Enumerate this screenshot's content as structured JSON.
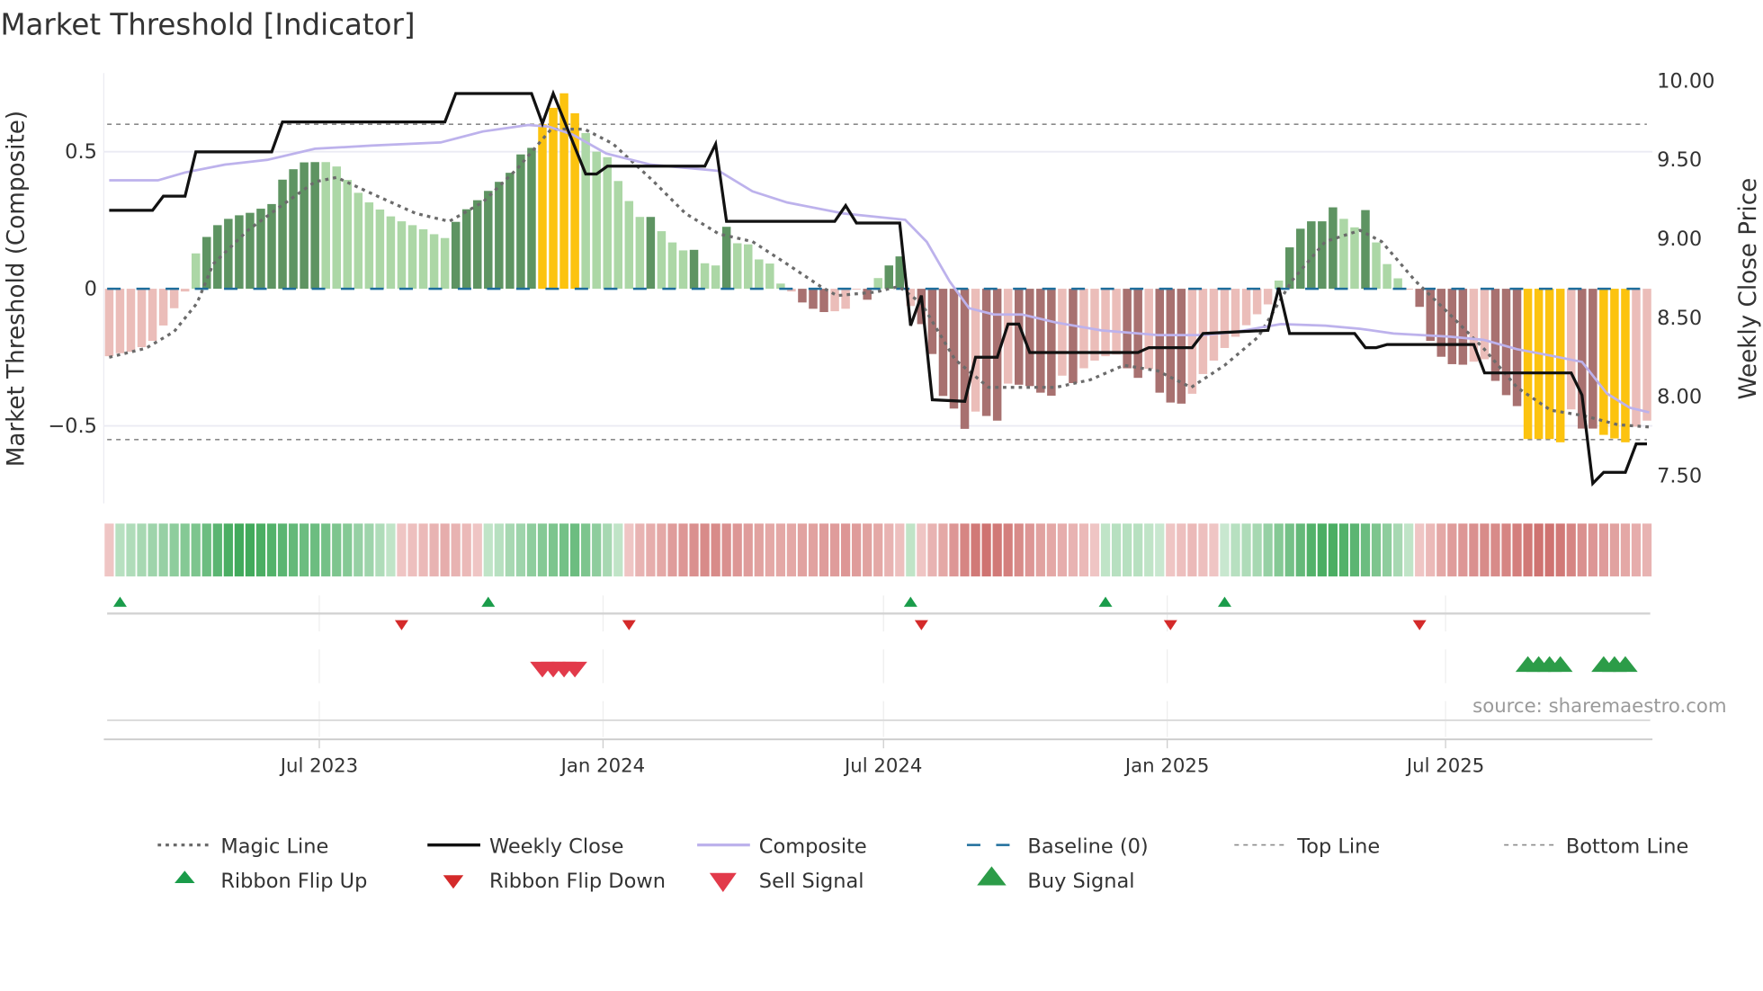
{
  "chart_data": {
    "type": "bar",
    "title": "Market Threshold [Indicator]",
    "ylabel_left": "Market Threshold (Composite)",
    "ylabel_right": "Weekly Close Price",
    "source": "source: sharemaestro.com",
    "left_axis": {
      "range": [
        -0.78,
        0.79
      ],
      "ticks": [
        0.5,
        0,
        -0.5
      ],
      "tick_labels": [
        "0.5",
        "0",
        "−0.5"
      ]
    },
    "right_axis": {
      "ticks": [
        10.0,
        9.5,
        9.0,
        8.5,
        8.0,
        7.5
      ],
      "tick_labels": [
        "10.00",
        "9.50",
        "9.00",
        "8.50",
        "8.00",
        "7.50"
      ]
    },
    "x_axis": {
      "unit": "week index",
      "weeks": 143,
      "ticks": [
        19.4,
        45.6,
        71.5,
        97.7,
        123.4
      ],
      "tick_labels": [
        "Jul 2023",
        "Jan 2024",
        "Jul 2024",
        "Jan 2025",
        "Jul 2025"
      ]
    },
    "levels": {
      "baseline": 0,
      "top_line": 0.6,
      "bottom_line": -0.55
    },
    "colors": {
      "G": "#5e9462",
      "g": "#acd7a6",
      "R": "#a87170",
      "r": "#ebbdb9",
      "Y": "#fcc30f",
      "close": "#111111",
      "composite": "#bdb2ec",
      "magic": "#6b6b6b",
      "baseline": "#1f6e9c",
      "guide": "#8a8a8a",
      "flip_up": "#1a9c4a",
      "flip_down": "#d42a2a",
      "sell": "#e23a4a",
      "buy": "#2c9c48"
    },
    "composite_bars": [
      -0.246,
      -0.235,
      -0.23,
      -0.213,
      -0.19,
      -0.134,
      -0.071,
      -0.01,
      0.129,
      0.189,
      0.232,
      0.255,
      0.268,
      0.277,
      0.292,
      0.309,
      0.398,
      0.436,
      0.461,
      0.462,
      0.462,
      0.446,
      0.397,
      0.35,
      0.315,
      0.289,
      0.264,
      0.246,
      0.232,
      0.217,
      0.199,
      0.185,
      0.244,
      0.29,
      0.323,
      0.357,
      0.39,
      0.423,
      0.49,
      0.514,
      0.6,
      0.66,
      0.713,
      0.64,
      0.568,
      0.5,
      0.48,
      0.393,
      0.32,
      0.262,
      0.262,
      0.21,
      0.169,
      0.14,
      0.142,
      0.093,
      0.085,
      0.226,
      0.166,
      0.162,
      0.107,
      0.092,
      0.019,
      -0.01,
      -0.05,
      -0.073,
      -0.085,
      -0.082,
      -0.073,
      -0.003,
      -0.04,
      0.039,
      0.085,
      0.118,
      -0.063,
      -0.129,
      -0.238,
      -0.391,
      -0.437,
      -0.511,
      -0.448,
      -0.464,
      -0.481,
      -0.346,
      -0.35,
      -0.355,
      -0.379,
      -0.39,
      -0.317,
      -0.344,
      -0.29,
      -0.262,
      -0.246,
      -0.24,
      -0.29,
      -0.325,
      -0.292,
      -0.379,
      -0.415,
      -0.419,
      -0.383,
      -0.311,
      -0.262,
      -0.216,
      -0.175,
      -0.133,
      -0.093,
      -0.057,
      0.03,
      0.151,
      0.219,
      0.246,
      0.246,
      0.297,
      0.255,
      0.224,
      0.287,
      0.169,
      0.09,
      0.038,
      -0.002,
      -0.066,
      -0.19,
      -0.248,
      -0.275,
      -0.277,
      -0.266,
      -0.257,
      -0.336,
      -0.388,
      -0.428,
      -0.548,
      -0.548,
      -0.548,
      -0.56,
      -0.44,
      -0.51,
      -0.51,
      -0.533,
      -0.546,
      -0.56,
      -0.503,
      -0.481
    ],
    "bar_states": "rrrrrrrrgGGGGGGGGGGGggggggggggggGGGGGGGGYYYYggggggGgggGggGgggggrRRRrrrRgGGrRRRRRrRRrRRRRrRrrrrRRrRRRrrrrrrrrgGGGGGggGgggrRRRRRrrRRRYYYYrRRYYYrr",
    "ribbon": [
      -0.15,
      0.25,
      0.3,
      0.35,
      0.4,
      0.45,
      0.5,
      0.55,
      0.6,
      0.7,
      0.8,
      0.9,
      0.95,
      0.95,
      0.9,
      0.85,
      0.8,
      0.75,
      0.7,
      0.7,
      0.65,
      0.6,
      0.55,
      0.45,
      0.4,
      0.3,
      0.2,
      -0.15,
      -0.2,
      -0.25,
      -0.3,
      -0.35,
      -0.3,
      -0.25,
      -0.15,
      0.2,
      0.25,
      0.35,
      0.4,
      0.5,
      0.55,
      0.6,
      0.65,
      0.7,
      0.6,
      0.5,
      0.35,
      0.2,
      -0.15,
      -0.3,
      -0.35,
      -0.4,
      -0.5,
      -0.55,
      -0.6,
      -0.65,
      -0.65,
      -0.6,
      -0.55,
      -0.5,
      -0.45,
      -0.4,
      -0.4,
      -0.4,
      -0.45,
      -0.45,
      -0.5,
      -0.5,
      -0.55,
      -0.5,
      -0.45,
      -0.4,
      -0.3,
      -0.2,
      0.2,
      -0.15,
      -0.3,
      -0.4,
      -0.55,
      -0.7,
      -0.8,
      -0.85,
      -0.8,
      -0.75,
      -0.65,
      -0.55,
      -0.45,
      -0.4,
      -0.35,
      -0.3,
      -0.25,
      -0.15,
      0.2,
      0.25,
      0.25,
      0.25,
      0.2,
      0.15,
      -0.15,
      -0.2,
      -0.25,
      -0.2,
      -0.15,
      0.15,
      0.25,
      0.3,
      0.35,
      0.45,
      0.55,
      0.65,
      0.75,
      0.85,
      0.9,
      0.9,
      0.85,
      0.8,
      0.7,
      0.6,
      0.5,
      0.35,
      0.2,
      -0.15,
      -0.25,
      -0.4,
      -0.5,
      -0.55,
      -0.6,
      -0.65,
      -0.65,
      -0.7,
      -0.75,
      -0.8,
      -0.85,
      -0.85,
      -0.8,
      -0.7,
      -0.6,
      -0.55,
      -0.5,
      -0.45,
      -0.4,
      -0.35,
      -0.3
    ],
    "weekly_close": [
      [
        0,
        9.18
      ],
      [
        4,
        9.18
      ],
      [
        5,
        9.27
      ],
      [
        7,
        9.27
      ],
      [
        8,
        9.55
      ],
      [
        15,
        9.55
      ],
      [
        16,
        9.74
      ],
      [
        31,
        9.74
      ],
      [
        32,
        9.92
      ],
      [
        39,
        9.92
      ],
      [
        40,
        9.73
      ],
      [
        41,
        9.92
      ],
      [
        44,
        9.41
      ],
      [
        45,
        9.41
      ],
      [
        46,
        9.46
      ],
      [
        55,
        9.46
      ],
      [
        56,
        9.6
      ],
      [
        57,
        9.11
      ],
      [
        67,
        9.11
      ],
      [
        68,
        9.21
      ],
      [
        69,
        9.1
      ],
      [
        73,
        9.1
      ],
      [
        74,
        8.45
      ],
      [
        75,
        8.64
      ],
      [
        76,
        7.98
      ],
      [
        79,
        7.97
      ],
      [
        80,
        8.25
      ],
      [
        82,
        8.25
      ],
      [
        83,
        8.46
      ],
      [
        84,
        8.46
      ],
      [
        85,
        8.28
      ],
      [
        95,
        8.28
      ],
      [
        96,
        8.31
      ],
      [
        100,
        8.31
      ],
      [
        101,
        8.4
      ],
      [
        107,
        8.42
      ],
      [
        108,
        8.69
      ],
      [
        109,
        8.4
      ],
      [
        115,
        8.4
      ],
      [
        116,
        8.31
      ],
      [
        117,
        8.31
      ],
      [
        118,
        8.33
      ],
      [
        126,
        8.33
      ],
      [
        127,
        8.15
      ],
      [
        135,
        8.15
      ],
      [
        136,
        8.01
      ],
      [
        137,
        7.45
      ],
      [
        138,
        7.52
      ],
      [
        140,
        7.52
      ],
      [
        141,
        7.7
      ],
      [
        142,
        7.7
      ]
    ],
    "composite_line": [
      [
        0,
        9.37
      ],
      [
        4.5,
        9.37
      ],
      [
        7,
        9.42
      ],
      [
        10.7,
        9.47
      ],
      [
        14.6,
        9.5
      ],
      [
        19,
        9.57
      ],
      [
        24.2,
        9.59
      ],
      [
        30.6,
        9.61
      ],
      [
        34.5,
        9.68
      ],
      [
        38.7,
        9.72
      ],
      [
        40.6,
        9.71
      ],
      [
        42.8,
        9.66
      ],
      [
        45.9,
        9.54
      ],
      [
        50,
        9.47
      ],
      [
        56.3,
        9.43
      ],
      [
        59.4,
        9.3
      ],
      [
        62.6,
        9.23
      ],
      [
        67.8,
        9.16
      ],
      [
        73.5,
        9.12
      ],
      [
        75.5,
        8.98
      ],
      [
        77.6,
        8.73
      ],
      [
        79.4,
        8.56
      ],
      [
        81.7,
        8.52
      ],
      [
        84.3,
        8.52
      ],
      [
        87.4,
        8.47
      ],
      [
        91.6,
        8.42
      ],
      [
        96.8,
        8.39
      ],
      [
        100.9,
        8.39
      ],
      [
        104,
        8.41
      ],
      [
        108.2,
        8.46
      ],
      [
        112.3,
        8.45
      ],
      [
        115.5,
        8.43
      ],
      [
        118.6,
        8.4
      ],
      [
        123.8,
        8.38
      ],
      [
        126.9,
        8.36
      ],
      [
        130,
        8.3
      ],
      [
        133.1,
        8.26
      ],
      [
        136,
        8.22
      ],
      [
        138.3,
        8.02
      ],
      [
        140.4,
        7.93
      ],
      [
        142.2,
        7.9
      ]
    ],
    "magic_line": [
      [
        0,
        -0.25
      ],
      [
        3.4,
        -0.217
      ],
      [
        6,
        -0.156
      ],
      [
        8.1,
        -0.053
      ],
      [
        9.6,
        0.09
      ],
      [
        12.8,
        0.213
      ],
      [
        15.9,
        0.303
      ],
      [
        19,
        0.39
      ],
      [
        21,
        0.406
      ],
      [
        24.2,
        0.348
      ],
      [
        28.3,
        0.275
      ],
      [
        31.4,
        0.246
      ],
      [
        34.5,
        0.316
      ],
      [
        37.7,
        0.439
      ],
      [
        40.8,
        0.582
      ],
      [
        43.9,
        0.582
      ],
      [
        46.5,
        0.529
      ],
      [
        50.1,
        0.398
      ],
      [
        53.2,
        0.275
      ],
      [
        56.3,
        0.2
      ],
      [
        59.4,
        0.172
      ],
      [
        62.6,
        0.09
      ],
      [
        65.7,
        0.008
      ],
      [
        67.2,
        -0.025
      ],
      [
        70.8,
        -0.012
      ],
      [
        72.9,
        0.008
      ],
      [
        75,
        -0.053
      ],
      [
        78.1,
        -0.258
      ],
      [
        81.2,
        -0.36
      ],
      [
        87.4,
        -0.36
      ],
      [
        90.6,
        -0.332
      ],
      [
        93.7,
        -0.279
      ],
      [
        96.8,
        -0.299
      ],
      [
        99.9,
        -0.36
      ],
      [
        103,
        -0.279
      ],
      [
        106.1,
        -0.176
      ],
      [
        109.2,
        0.029
      ],
      [
        112.3,
        0.172
      ],
      [
        115.5,
        0.213
      ],
      [
        117.5,
        0.172
      ],
      [
        120.6,
        0.029
      ],
      [
        123.8,
        -0.094
      ],
      [
        126.9,
        -0.217
      ],
      [
        130,
        -0.36
      ],
      [
        133.1,
        -0.443
      ],
      [
        136.2,
        -0.463
      ],
      [
        139.3,
        -0.496
      ],
      [
        142.2,
        -0.504
      ]
    ],
    "ribbon_flip_up": [
      1,
      35,
      74,
      92,
      103
    ],
    "ribbon_flip_down": [
      27,
      48,
      75,
      98,
      121
    ],
    "sell_signals": [
      40,
      41,
      42,
      43
    ],
    "buy_signals": [
      131,
      132,
      133,
      134,
      138,
      139,
      140
    ],
    "legend": {
      "placement": "bottom",
      "magic_line": "Magic Line",
      "weekly_close": "Weekly Close",
      "composite": "Composite",
      "baseline": "Baseline (0)",
      "top_line": "Top Line",
      "bottom_line": "Bottom Line",
      "ribbon_flip_up": "Ribbon Flip Up",
      "ribbon_flip_down": "Ribbon Flip Down",
      "sell_signal": "Sell Signal",
      "buy_signal": "Buy Signal"
    }
  }
}
